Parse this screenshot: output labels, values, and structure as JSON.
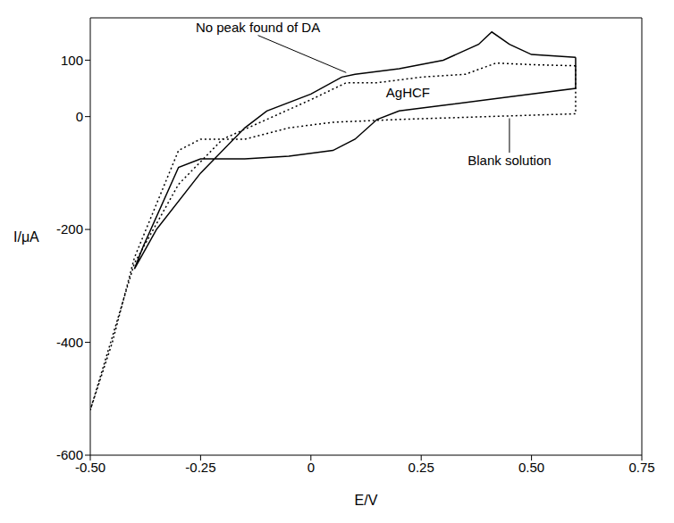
{
  "chart_data": {
    "type": "line",
    "xlabel": "E/V",
    "ylabel": "I/μA",
    "xlim": [
      -0.5,
      0.75
    ],
    "ylim": [
      -600,
      175
    ],
    "xticks": [
      {
        "value": -0.5,
        "label": "-0.50"
      },
      -0.25,
      0,
      0.25,
      {
        "value": 0.5,
        "label": "0.50"
      },
      0.75
    ],
    "yticks": [
      -600,
      -400,
      -200,
      0,
      100
    ],
    "grid": false,
    "series": [
      {
        "color": "#000000",
        "line_style": "solid",
        "x": [
          0.6,
          0.5,
          0.45,
          0.41,
          0.38,
          0.3,
          0.2,
          0.1,
          0.07,
          0.0,
          -0.1,
          -0.15,
          -0.25,
          -0.35,
          -0.4,
          -0.38,
          -0.3,
          -0.25,
          -0.15,
          -0.05,
          0.05,
          0.1,
          0.15,
          0.2,
          0.3,
          0.45,
          0.6,
          0.6
        ],
        "values": [
          105,
          110,
          128,
          150,
          128,
          100,
          85,
          75,
          70,
          40,
          10,
          -20,
          -100,
          -200,
          -270,
          -230,
          -90,
          -75,
          -75,
          -70,
          -60,
          -40,
          -5,
          10,
          20,
          35,
          50,
          105
        ]
      },
      {
        "color": "#000000",
        "line_style": "dotted",
        "x": [
          0.6,
          0.5,
          0.42,
          0.35,
          0.25,
          0.15,
          0.08,
          0.0,
          -0.1,
          -0.2,
          -0.3,
          -0.4,
          -0.5,
          -0.45,
          -0.4,
          -0.3,
          -0.25,
          -0.15,
          -0.05,
          0.05,
          0.2,
          0.4,
          0.6,
          0.6
        ],
        "values": [
          90,
          92,
          95,
          75,
          70,
          60,
          60,
          30,
          -5,
          -40,
          -120,
          -260,
          -520,
          -400,
          -250,
          -60,
          -40,
          -40,
          -20,
          -10,
          -5,
          0,
          5,
          90
        ]
      }
    ],
    "annotations": [
      {
        "text": "No peak found of DA",
        "x": -0.12,
        "y": 158,
        "arrow_to": [
          0.08,
          78
        ]
      },
      {
        "text": "AgHCF",
        "x": 0.22,
        "y": 42
      },
      {
        "text": "Blank solution",
        "x": 0.45,
        "y": -78,
        "arrow_to": [
          0.45,
          -3
        ]
      }
    ]
  }
}
